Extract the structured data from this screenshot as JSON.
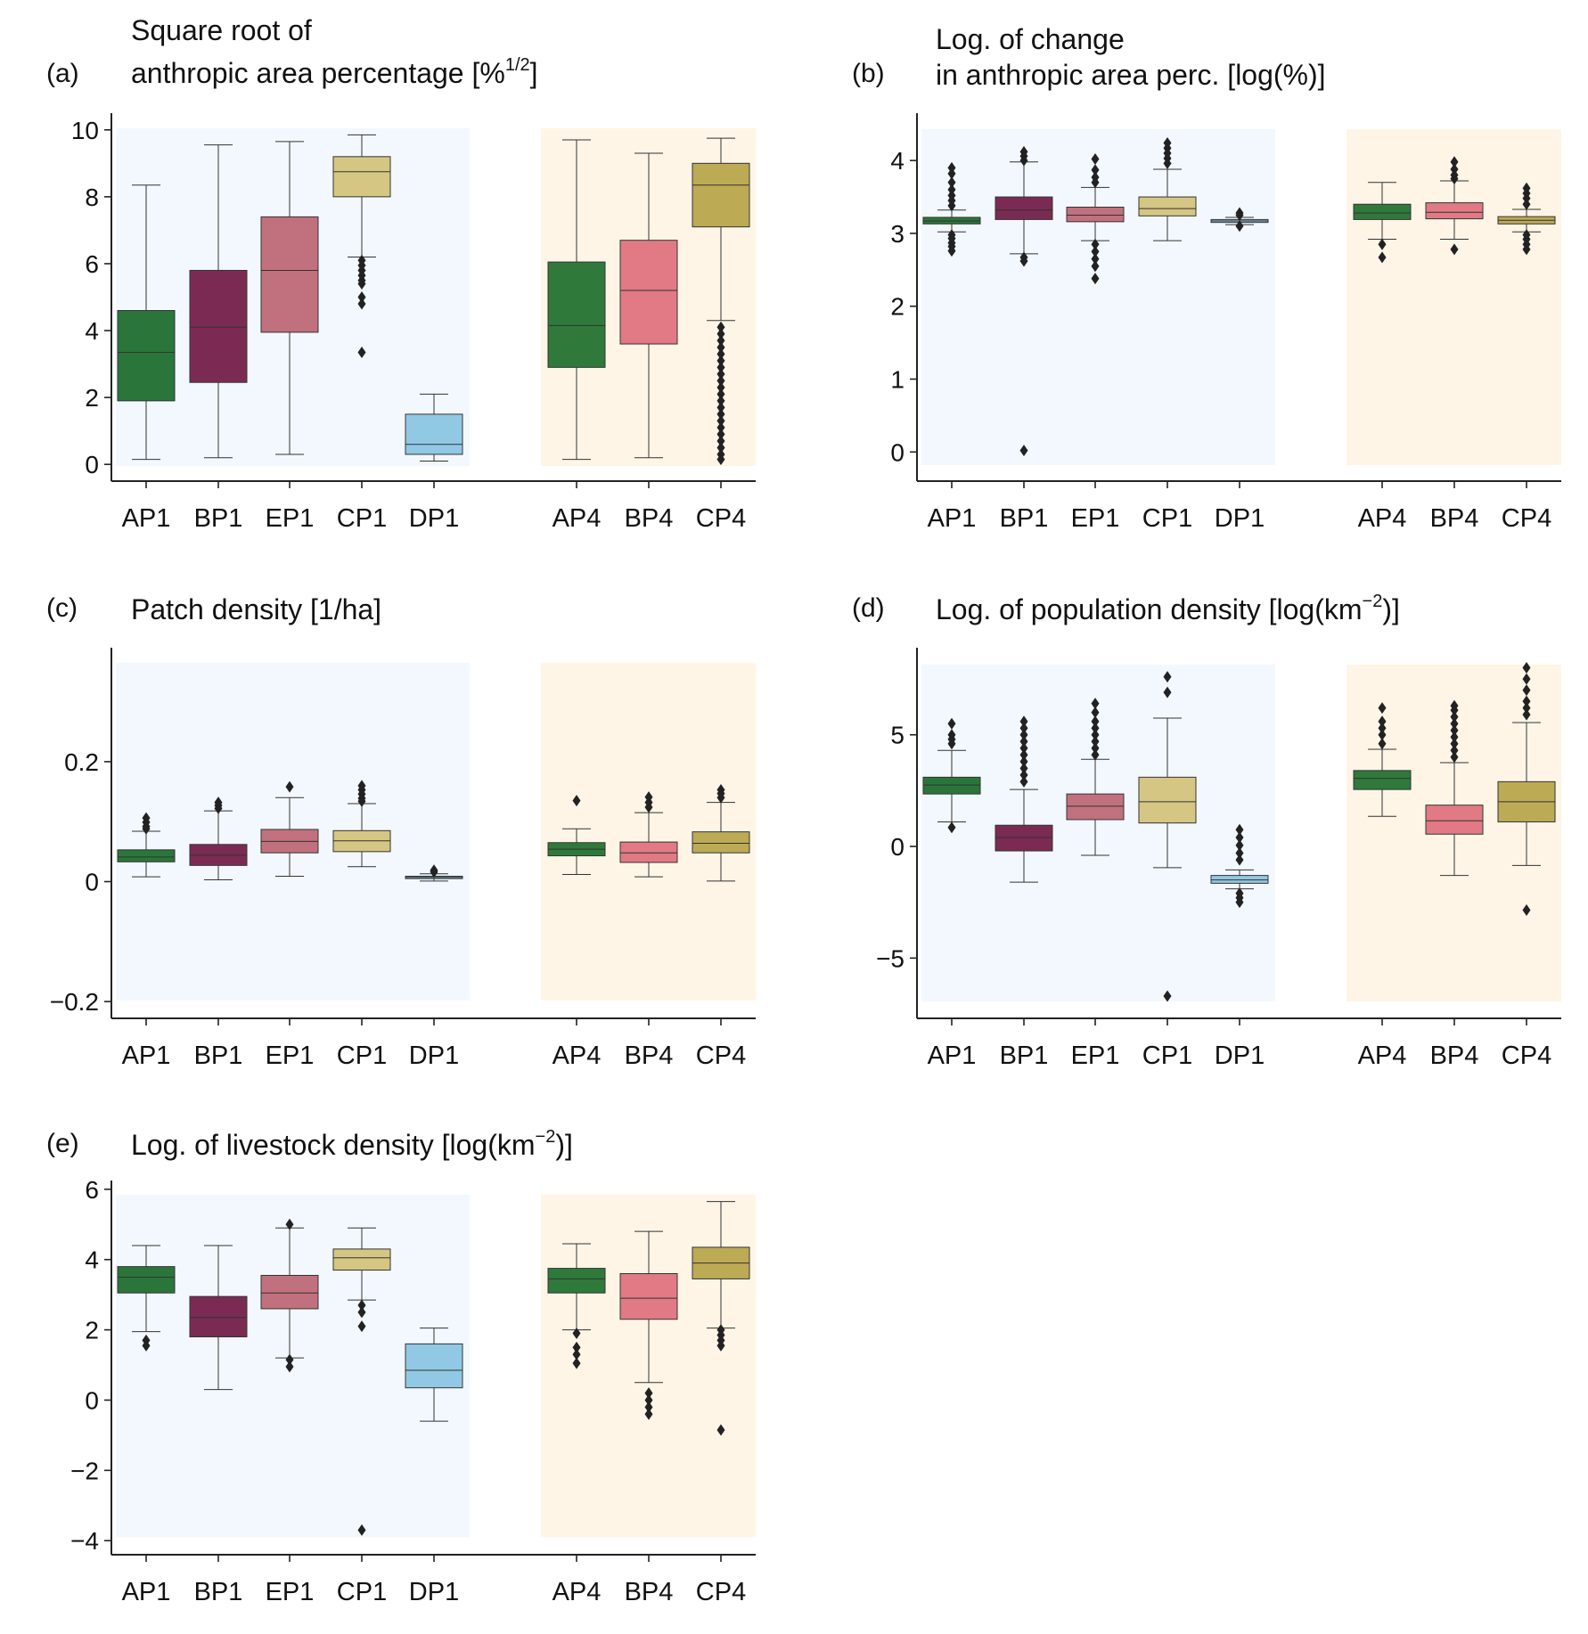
{
  "colors": {
    "AP1": "#2a763a",
    "BP1": "#7b2b53",
    "EP1": "#c1717d",
    "CP1": "#d5c683",
    "DP1": "#91c8e4",
    "AP4": "#2f7a3a",
    "BP4": "#e17a84",
    "CP4": "#bdaa55",
    "bg_group1": "#f3f8fe",
    "bg_group2": "#fef5e7",
    "flier": "#222222"
  },
  "chart_data": [
    {
      "type": "box",
      "panel": "(a)",
      "title_lines": [
        "Square root of",
        "anthropic area percentage [%",
        "1/2",
        "]"
      ],
      "categories": [
        "AP1",
        "BP1",
        "EP1",
        "CP1",
        "DP1",
        "AP4",
        "BP4",
        "CP4"
      ],
      "yticks": [
        0,
        2,
        4,
        6,
        8,
        10
      ],
      "ylim": [
        -0.5,
        10.5
      ],
      "bg_range": [
        -0.05,
        10.05
      ],
      "boxes": [
        {
          "q1": 1.9,
          "median": 3.35,
          "q3": 4.6,
          "whislo": 0.15,
          "whishi": 8.35,
          "fliers": []
        },
        {
          "q1": 2.45,
          "median": 4.1,
          "q3": 5.8,
          "whislo": 0.2,
          "whishi": 9.55,
          "fliers": []
        },
        {
          "q1": 3.95,
          "median": 5.8,
          "q3": 7.4,
          "whislo": 0.3,
          "whishi": 9.65,
          "fliers": []
        },
        {
          "q1": 8.0,
          "median": 8.75,
          "q3": 9.2,
          "whislo": 6.2,
          "whishi": 9.85,
          "fliers": [
            6.1,
            5.95,
            5.8,
            5.65,
            5.5,
            5.4,
            5.0,
            4.8,
            3.35
          ]
        },
        {
          "q1": 0.3,
          "median": 0.6,
          "q3": 1.5,
          "whislo": 0.1,
          "whishi": 2.1,
          "fliers": []
        },
        {
          "q1": 2.9,
          "median": 4.15,
          "q3": 6.05,
          "whislo": 0.15,
          "whishi": 9.7,
          "fliers": []
        },
        {
          "q1": 3.6,
          "median": 5.2,
          "q3": 6.7,
          "whislo": 0.2,
          "whishi": 9.3,
          "fliers": []
        },
        {
          "q1": 7.1,
          "median": 8.35,
          "q3": 9.0,
          "whislo": 4.3,
          "whishi": 9.75,
          "fliers": [
            4.1,
            3.9,
            3.7,
            3.5,
            3.3,
            3.1,
            2.9,
            2.7,
            2.5,
            2.3,
            2.1,
            1.9,
            1.7,
            1.5,
            1.3,
            1.1,
            0.9,
            0.7,
            0.5,
            0.3,
            0.15
          ]
        }
      ]
    },
    {
      "type": "box",
      "panel": "(b)",
      "title_lines": [
        "Log. of change",
        "in anthropic area perc. [log(%)]"
      ],
      "categories": [
        "AP1",
        "BP1",
        "EP1",
        "CP1",
        "DP1",
        "AP4",
        "BP4",
        "CP4"
      ],
      "yticks": [
        0,
        1,
        2,
        3,
        4
      ],
      "ylim": [
        -0.4,
        4.65
      ],
      "bg_range": [
        -0.18,
        4.43
      ],
      "boxes": [
        {
          "q1": 3.13,
          "median": 3.17,
          "q3": 3.22,
          "whislo": 3.02,
          "whishi": 3.32,
          "fliers": [
            3.9,
            3.82,
            3.7,
            3.6,
            3.52,
            3.45,
            3.38,
            2.98,
            2.93,
            2.87,
            2.82,
            2.76
          ]
        },
        {
          "q1": 3.19,
          "median": 3.32,
          "q3": 3.5,
          "whislo": 2.72,
          "whishi": 3.98,
          "fliers": [
            4.12,
            4.06,
            4.0,
            2.67,
            2.62,
            0.02
          ]
        },
        {
          "q1": 3.16,
          "median": 3.25,
          "q3": 3.36,
          "whislo": 2.9,
          "whishi": 3.63,
          "fliers": [
            4.02,
            3.87,
            3.77,
            3.7,
            2.85,
            2.75,
            2.65,
            2.55,
            2.38
          ]
        },
        {
          "q1": 3.24,
          "median": 3.34,
          "q3": 3.5,
          "whislo": 2.9,
          "whishi": 3.88,
          "fliers": [
            4.24,
            4.17,
            4.1,
            4.03,
            3.96
          ]
        },
        {
          "q1": 3.15,
          "median": 3.17,
          "q3": 3.19,
          "whislo": 3.12,
          "whishi": 3.22,
          "fliers": [
            3.28,
            3.25,
            3.1
          ]
        },
        {
          "q1": 3.19,
          "median": 3.28,
          "q3": 3.4,
          "whislo": 2.92,
          "whishi": 3.7,
          "fliers": [
            2.85,
            2.67
          ]
        },
        {
          "q1": 3.2,
          "median": 3.29,
          "q3": 3.42,
          "whislo": 2.92,
          "whishi": 3.72,
          "fliers": [
            3.98,
            3.88,
            3.8,
            3.75,
            2.78
          ]
        },
        {
          "q1": 3.13,
          "median": 3.18,
          "q3": 3.23,
          "whislo": 3.02,
          "whishi": 3.33,
          "fliers": [
            3.62,
            3.55,
            3.48,
            3.4,
            2.98,
            2.92,
            2.85,
            2.78
          ]
        }
      ]
    },
    {
      "type": "box",
      "panel": "(c)",
      "title_lines": [
        "Patch density [1/ha]"
      ],
      "categories": [
        "AP1",
        "BP1",
        "EP1",
        "CP1",
        "DP1",
        "AP4",
        "BP4",
        "CP4"
      ],
      "yticks": [
        -0.2,
        0.0,
        0.2
      ],
      "ylim": [
        -0.228,
        0.39
      ],
      "bg_range": [
        -0.198,
        0.365
      ],
      "boxes": [
        {
          "q1": 0.033,
          "median": 0.041,
          "q3": 0.053,
          "whislo": 0.008,
          "whishi": 0.084,
          "fliers": [
            0.106,
            0.099,
            0.092,
            0.088
          ]
        },
        {
          "q1": 0.027,
          "median": 0.044,
          "q3": 0.062,
          "whislo": 0.003,
          "whishi": 0.118,
          "fliers": [
            0.132,
            0.127,
            0.122
          ]
        },
        {
          "q1": 0.048,
          "median": 0.067,
          "q3": 0.087,
          "whislo": 0.009,
          "whishi": 0.14,
          "fliers": [
            0.158
          ]
        },
        {
          "q1": 0.05,
          "median": 0.068,
          "q3": 0.085,
          "whislo": 0.025,
          "whishi": 0.13,
          "fliers": [
            0.16,
            0.153,
            0.146,
            0.139,
            0.134
          ]
        },
        {
          "q1": 0.005,
          "median": 0.007,
          "q3": 0.009,
          "whislo": 0.001,
          "whishi": 0.013,
          "fliers": [
            0.019,
            0.016
          ]
        },
        {
          "q1": 0.043,
          "median": 0.054,
          "q3": 0.065,
          "whislo": 0.012,
          "whishi": 0.088,
          "fliers": [
            0.135
          ]
        },
        {
          "q1": 0.032,
          "median": 0.048,
          "q3": 0.066,
          "whislo": 0.008,
          "whishi": 0.115,
          "fliers": [
            0.141,
            0.132,
            0.124
          ]
        },
        {
          "q1": 0.048,
          "median": 0.064,
          "q3": 0.083,
          "whislo": 0.001,
          "whishi": 0.132,
          "fliers": [
            0.153,
            0.147,
            0.14
          ]
        }
      ]
    },
    {
      "type": "box",
      "panel": "(d)",
      "title_lines": [
        "Log. of population density [log(km",
        "−2",
        ")]"
      ],
      "categories": [
        "AP1",
        "BP1",
        "EP1",
        "CP1",
        "DP1",
        "AP4",
        "BP4",
        "CP4"
      ],
      "yticks": [
        -5,
        0,
        5
      ],
      "ylim": [
        -7.7,
        8.9
      ],
      "bg_range": [
        -6.95,
        8.15
      ],
      "boxes": [
        {
          "q1": 2.35,
          "median": 2.75,
          "q3": 3.1,
          "whislo": 1.1,
          "whishi": 4.3,
          "fliers": [
            5.5,
            5.0,
            4.8,
            4.6,
            0.85
          ]
        },
        {
          "q1": -0.2,
          "median": 0.4,
          "q3": 0.95,
          "whislo": -1.6,
          "whishi": 2.55,
          "fliers": [
            5.6,
            5.3,
            5.0,
            4.7,
            4.4,
            4.1,
            3.8,
            3.5,
            3.2,
            2.9
          ]
        },
        {
          "q1": 1.2,
          "median": 1.8,
          "q3": 2.35,
          "whislo": -0.4,
          "whishi": 3.9,
          "fliers": [
            6.4,
            6.0,
            5.6,
            5.3,
            5.0,
            4.7,
            4.4,
            4.1
          ]
        },
        {
          "q1": 1.05,
          "median": 2.0,
          "q3": 3.1,
          "whislo": -0.95,
          "whishi": 5.75,
          "fliers": [
            7.6,
            6.9,
            -6.7
          ]
        },
        {
          "q1": -1.65,
          "median": -1.5,
          "q3": -1.3,
          "whislo": -1.9,
          "whishi": -1.05,
          "fliers": [
            0.75,
            0.4,
            0.05,
            -0.3,
            -0.6,
            -2.1,
            -2.3,
            -2.5
          ]
        },
        {
          "q1": 2.55,
          "median": 3.05,
          "q3": 3.4,
          "whislo": 1.35,
          "whishi": 4.35,
          "fliers": [
            6.2,
            5.6,
            5.3,
            5.0,
            4.6
          ]
        },
        {
          "q1": 0.55,
          "median": 1.15,
          "q3": 1.85,
          "whislo": -1.3,
          "whishi": 3.75,
          "fliers": [
            6.3,
            6.1,
            5.8,
            5.5,
            5.2,
            4.9,
            4.6,
            4.3,
            4.0
          ]
        },
        {
          "q1": 1.1,
          "median": 2.0,
          "q3": 2.9,
          "whislo": -0.85,
          "whishi": 5.55,
          "fliers": [
            8.0,
            7.5,
            7.0,
            6.5,
            6.2,
            5.9,
            -2.85
          ]
        }
      ]
    },
    {
      "type": "box",
      "panel": "(e)",
      "title_lines": [
        "Log. of livestock density [log(km",
        "−2",
        ")]"
      ],
      "categories": [
        "AP1",
        "BP1",
        "EP1",
        "CP1",
        "DP1",
        "AP4",
        "BP4",
        "CP4"
      ],
      "yticks": [
        -4,
        -2,
        0,
        2,
        4,
        6
      ],
      "ylim": [
        -4.4,
        6.25
      ],
      "bg_range": [
        -3.9,
        5.85
      ],
      "boxes": [
        {
          "q1": 3.05,
          "median": 3.5,
          "q3": 3.8,
          "whislo": 1.95,
          "whishi": 4.4,
          "fliers": [
            1.7,
            1.55
          ]
        },
        {
          "q1": 1.8,
          "median": 2.35,
          "q3": 2.95,
          "whislo": 0.3,
          "whishi": 4.4,
          "fliers": []
        },
        {
          "q1": 2.6,
          "median": 3.05,
          "q3": 3.55,
          "whislo": 1.2,
          "whishi": 4.9,
          "fliers": [
            5.0,
            1.15,
            0.95
          ]
        },
        {
          "q1": 3.7,
          "median": 4.05,
          "q3": 4.3,
          "whislo": 2.85,
          "whishi": 4.9,
          "fliers": [
            2.7,
            2.5,
            2.1,
            -3.7
          ]
        },
        {
          "q1": 0.35,
          "median": 0.85,
          "q3": 1.6,
          "whislo": -0.6,
          "whishi": 2.05,
          "fliers": []
        },
        {
          "q1": 3.05,
          "median": 3.45,
          "q3": 3.75,
          "whislo": 2.0,
          "whishi": 4.45,
          "fliers": [
            1.9,
            1.5,
            1.3,
            1.05
          ]
        },
        {
          "q1": 2.3,
          "median": 2.9,
          "q3": 3.6,
          "whislo": 0.5,
          "whishi": 4.8,
          "fliers": [
            0.2,
            0.0,
            -0.2,
            -0.4
          ]
        },
        {
          "q1": 3.45,
          "median": 3.9,
          "q3": 4.35,
          "whislo": 2.05,
          "whishi": 5.65,
          "fliers": [
            2.0,
            1.85,
            1.7,
            1.55,
            -0.85
          ]
        }
      ]
    }
  ]
}
